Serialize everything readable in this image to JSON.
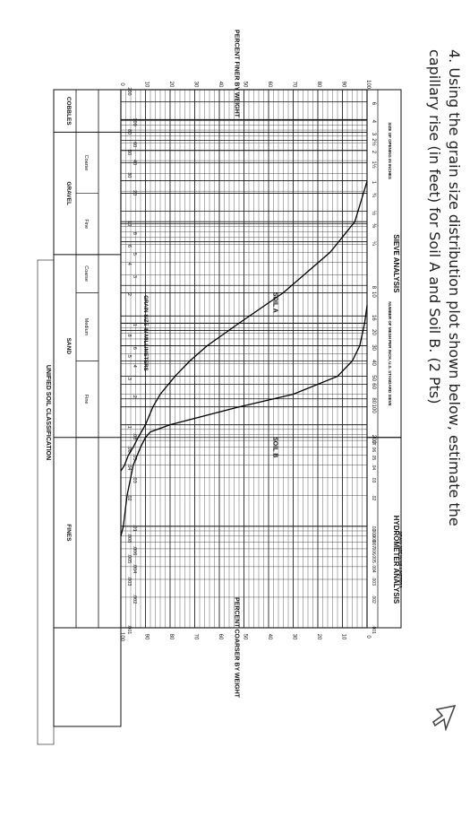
{
  "question": {
    "number": "4.",
    "text": "Using the grain size distribution plot shown below, estimate the capillary rise (in feet) for Soil A and Soil B. (2 Pts)"
  },
  "chart_data": {
    "type": "line",
    "title": "",
    "xlabel": "GRAIN SIZE IN MILLIMETERS",
    "ylabel": "PERCENT FINER BY WEIGHT",
    "ylabel_right": "PERCENT COARSER BY WEIGHT",
    "x_scale": "log",
    "x_reversed": true,
    "xlim": [
      200,
      0.001
    ],
    "ylim": [
      0,
      100
    ],
    "grid": true,
    "sections": {
      "sieve": "SIEVE ANALYSIS",
      "hydrometer": "HYDROMETER ANALYSIS",
      "sieve_inches_label": "SIZE OF OPENING IN INCHES",
      "sieve_number_label": "NUMBER OF MESH PER INCH, U.S. STANDARD SIEVE",
      "hydrometer_sub": "GRAIN SIZE IN MILLIMETERS"
    },
    "inch_ticks": [
      {
        "label": "6",
        "mm": 152.4
      },
      {
        "label": "4",
        "mm": 101.6
      },
      {
        "label": "3",
        "mm": 76.2
      },
      {
        "label": "2½",
        "mm": 63.5
      },
      {
        "label": "2",
        "mm": 50.8
      },
      {
        "label": "1½",
        "mm": 38.1
      },
      {
        "label": "1",
        "mm": 25.4
      },
      {
        "label": "¾",
        "mm": 19.05
      },
      {
        "label": "½",
        "mm": 12.7
      },
      {
        "label": "⅜",
        "mm": 9.525
      },
      {
        "label": "¼",
        "mm": 6.35
      }
    ],
    "sieve_ticks": [
      {
        "label": "8",
        "mm": 2.36
      },
      {
        "label": "10",
        "mm": 2.0
      },
      {
        "label": "16",
        "mm": 1.18
      },
      {
        "label": "20",
        "mm": 0.85
      },
      {
        "label": "30",
        "mm": 0.6
      },
      {
        "label": "40",
        "mm": 0.425
      },
      {
        "label": "50",
        "mm": 0.3
      },
      {
        "label": "60",
        "mm": 0.25
      },
      {
        "label": "80",
        "mm": 0.18
      },
      {
        "label": "100",
        "mm": 0.15
      },
      {
        "label": "200",
        "mm": 0.075
      }
    ],
    "hydro_ticks": [
      {
        "label": ".07",
        "mm": 0.07
      },
      {
        "label": ".06",
        "mm": 0.06
      },
      {
        "label": ".05",
        "mm": 0.05
      },
      {
        "label": ".04",
        "mm": 0.04
      },
      {
        "label": ".03",
        "mm": 0.03
      },
      {
        "label": ".02",
        "mm": 0.02
      },
      {
        "label": ".01",
        "mm": 0.01
      },
      {
        "label": ".009",
        "mm": 0.009
      },
      {
        "label": ".008",
        "mm": 0.008
      },
      {
        "label": ".007",
        "mm": 0.007
      },
      {
        "label": ".006",
        "mm": 0.006
      },
      {
        "label": ".005",
        "mm": 0.005
      },
      {
        "label": ".004",
        "mm": 0.004
      },
      {
        "label": ".003",
        "mm": 0.003
      },
      {
        "label": ".002",
        "mm": 0.002
      },
      {
        "label": ".001",
        "mm": 0.001
      }
    ],
    "mm_ticks": [
      {
        "label": "200",
        "mm": 200
      },
      {
        "label": "100",
        "mm": 100
      },
      {
        "label": "80",
        "mm": 80
      },
      {
        "label": "60",
        "mm": 60
      },
      {
        "label": "50",
        "mm": 50
      },
      {
        "label": "40",
        "mm": 40
      },
      {
        "label": "30",
        "mm": 30
      },
      {
        "label": "20",
        "mm": 20
      },
      {
        "label": "10",
        "mm": 10
      },
      {
        "label": "8",
        "mm": 8
      },
      {
        "label": "6",
        "mm": 6
      },
      {
        "label": "5",
        "mm": 5
      },
      {
        "label": "4",
        "mm": 4
      },
      {
        "label": "3",
        "mm": 3
      },
      {
        "label": "2",
        "mm": 2
      },
      {
        "label": "1",
        "mm": 1
      },
      {
        "label": ".8",
        "mm": 0.8
      },
      {
        "label": ".6",
        "mm": 0.6
      },
      {
        "label": ".5",
        "mm": 0.5
      },
      {
        "label": ".4",
        "mm": 0.4
      },
      {
        "label": ".3",
        "mm": 0.3
      },
      {
        "label": ".2",
        "mm": 0.2
      },
      {
        "label": ".1",
        "mm": 0.1
      },
      {
        "label": ".08",
        "mm": 0.08
      },
      {
        "label": ".06",
        "mm": 0.06
      },
      {
        "label": ".05",
        "mm": 0.05
      },
      {
        "label": ".04",
        "mm": 0.04
      },
      {
        "label": ".03",
        "mm": 0.03
      },
      {
        "label": ".02",
        "mm": 0.02
      },
      {
        "label": ".01",
        "mm": 0.01
      },
      {
        "label": ".008",
        "mm": 0.008
      },
      {
        "label": ".006",
        "mm": 0.006
      },
      {
        "label": ".005",
        "mm": 0.005
      },
      {
        "label": ".004",
        "mm": 0.004
      },
      {
        "label": ".003",
        "mm": 0.003
      },
      {
        "label": ".002",
        "mm": 0.002
      },
      {
        "label": ".001",
        "mm": 0.001
      }
    ],
    "y_ticks_left": [
      "0",
      "10",
      "20",
      "30",
      "40",
      "50",
      "60",
      "70",
      "80",
      "90",
      "100"
    ],
    "y_ticks_right": [
      "100",
      "90",
      "80",
      "70",
      "60",
      "50",
      "40",
      "30",
      "20",
      "10",
      "0"
    ],
    "classification": {
      "title": "UNIFIED SOIL CLASSIFICATION",
      "groups": [
        {
          "label": "COBBLES",
          "from_mm": 200,
          "to_mm": 76.2
        },
        {
          "label": "GRAVEL",
          "from_mm": 76.2,
          "to_mm": 4.75,
          "subs": [
            {
              "label": "Coarse",
              "from_mm": 76.2,
              "to_mm": 19.05
            },
            {
              "label": "Fine",
              "from_mm": 19.05,
              "to_mm": 4.75
            }
          ]
        },
        {
          "label": "SAND",
          "from_mm": 4.75,
          "to_mm": 0.075,
          "subs": [
            {
              "label": "Coarse",
              "from_mm": 4.75,
              "to_mm": 2.0
            },
            {
              "label": "Medium",
              "from_mm": 2.0,
              "to_mm": 0.425
            },
            {
              "label": "Fine",
              "from_mm": 0.425,
              "to_mm": 0.075
            }
          ]
        },
        {
          "label": "FINES",
          "from_mm": 0.075,
          "to_mm": 0.001
        }
      ]
    },
    "series": [
      {
        "name": "SOIL A",
        "points": [
          [
            25,
            100
          ],
          [
            10,
            95
          ],
          [
            5,
            85
          ],
          [
            2,
            66
          ],
          [
            1,
            48
          ],
          [
            0.6,
            35
          ],
          [
            0.425,
            28
          ],
          [
            0.3,
            22
          ],
          [
            0.2,
            16
          ],
          [
            0.15,
            13
          ],
          [
            0.1,
            10
          ],
          [
            0.075,
            7
          ],
          [
            0.06,
            5
          ],
          [
            0.05,
            3
          ],
          [
            0.04,
            1.5
          ],
          [
            0.035,
            0
          ]
        ]
      },
      {
        "name": "SOIL B",
        "points": [
          [
            1.5,
            100
          ],
          [
            1.0,
            99
          ],
          [
            0.6,
            97
          ],
          [
            0.425,
            94
          ],
          [
            0.3,
            88
          ],
          [
            0.2,
            70
          ],
          [
            0.15,
            48
          ],
          [
            0.1,
            20
          ],
          [
            0.085,
            12
          ],
          [
            0.075,
            10
          ],
          [
            0.06,
            8
          ],
          [
            0.04,
            5
          ],
          [
            0.02,
            2.5
          ],
          [
            0.01,
            1
          ],
          [
            0.008,
            0
          ]
        ]
      }
    ],
    "labels": {
      "soil_a": "SOIL A",
      "soil_b": "SOIL B"
    }
  }
}
